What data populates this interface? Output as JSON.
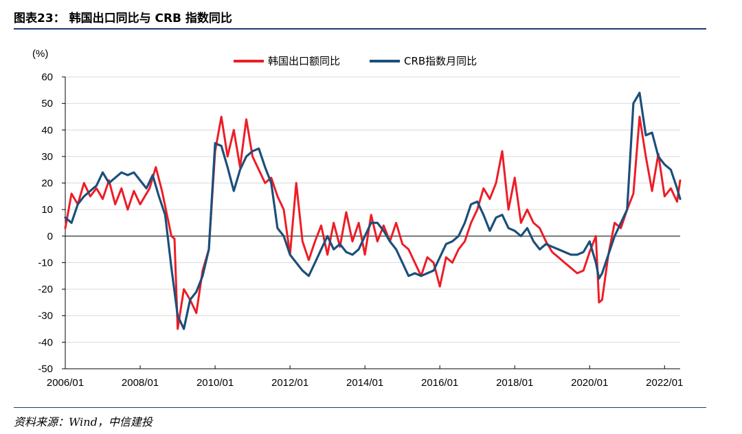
{
  "header": {
    "title": "图表23：  韩国出口同比与 CRB 指数同比"
  },
  "footer": {
    "source": "资料来源：Wind，中信建投"
  },
  "chart_data": {
    "type": "line",
    "unit_label": "(%)",
    "ylim": [
      -50,
      60
    ],
    "yticks": [
      60,
      50,
      40,
      30,
      20,
      10,
      0,
      -10,
      -20,
      -30,
      -40,
      -50
    ],
    "xticks": [
      "2006/01",
      "2008/01",
      "2010/01",
      "2012/01",
      "2014/01",
      "2016/01",
      "2018/01",
      "2020/01",
      "2022/01"
    ],
    "x_start": "2006/01",
    "x_end": "2022/06",
    "grid": true,
    "legend_position": "top-center",
    "series": [
      {
        "name": "韩国出口额同比",
        "color": "#ee1c25",
        "points": [
          [
            "2006/01",
            3
          ],
          [
            "2006/03",
            16
          ],
          [
            "2006/05",
            12
          ],
          [
            "2006/07",
            20
          ],
          [
            "2006/09",
            15
          ],
          [
            "2006/11",
            18
          ],
          [
            "2007/01",
            14
          ],
          [
            "2007/03",
            21
          ],
          [
            "2007/05",
            12
          ],
          [
            "2007/07",
            18
          ],
          [
            "2007/09",
            10
          ],
          [
            "2007/11",
            17
          ],
          [
            "2008/01",
            12
          ],
          [
            "2008/04",
            18
          ],
          [
            "2008/06",
            26
          ],
          [
            "2008/08",
            17
          ],
          [
            "2008/11",
            0
          ],
          [
            "2008/12",
            -1
          ],
          [
            "2009/01",
            -35
          ],
          [
            "2009/03",
            -20
          ],
          [
            "2009/05",
            -24
          ],
          [
            "2009/07",
            -29
          ],
          [
            "2009/09",
            -13
          ],
          [
            "2009/11",
            -5
          ],
          [
            "2010/01",
            32
          ],
          [
            "2010/03",
            45
          ],
          [
            "2010/05",
            30
          ],
          [
            "2010/07",
            40
          ],
          [
            "2010/09",
            26
          ],
          [
            "2010/11",
            44
          ],
          [
            "2011/01",
            30
          ],
          [
            "2011/03",
            25
          ],
          [
            "2011/05",
            20
          ],
          [
            "2011/07",
            22
          ],
          [
            "2011/09",
            15
          ],
          [
            "2011/11",
            10
          ],
          [
            "2012/01",
            -7
          ],
          [
            "2012/03",
            20
          ],
          [
            "2012/05",
            -2
          ],
          [
            "2012/07",
            -9
          ],
          [
            "2012/09",
            -2
          ],
          [
            "2012/11",
            4
          ],
          [
            "2013/01",
            -7
          ],
          [
            "2013/03",
            5
          ],
          [
            "2013/05",
            -4
          ],
          [
            "2013/07",
            9
          ],
          [
            "2013/09",
            -2
          ],
          [
            "2013/11",
            5
          ],
          [
            "2014/01",
            -7
          ],
          [
            "2014/03",
            8
          ],
          [
            "2014/05",
            -2
          ],
          [
            "2014/07",
            4
          ],
          [
            "2014/09",
            -2
          ],
          [
            "2014/11",
            5
          ],
          [
            "2015/01",
            -3
          ],
          [
            "2015/03",
            -5
          ],
          [
            "2015/05",
            -10
          ],
          [
            "2015/07",
            -15
          ],
          [
            "2015/09",
            -8
          ],
          [
            "2015/11",
            -10
          ],
          [
            "2016/01",
            -19
          ],
          [
            "2016/03",
            -8
          ],
          [
            "2016/05",
            -10
          ],
          [
            "2016/07",
            -5
          ],
          [
            "2016/09",
            -2
          ],
          [
            "2016/11",
            5
          ],
          [
            "2017/01",
            10
          ],
          [
            "2017/03",
            18
          ],
          [
            "2017/05",
            14
          ],
          [
            "2017/07",
            20
          ],
          [
            "2017/09",
            32
          ],
          [
            "2017/11",
            10
          ],
          [
            "2018/01",
            22
          ],
          [
            "2018/03",
            5
          ],
          [
            "2018/05",
            10
          ],
          [
            "2018/07",
            5
          ],
          [
            "2018/09",
            3
          ],
          [
            "2018/11",
            -2
          ],
          [
            "2019/01",
            -6
          ],
          [
            "2019/03",
            -8
          ],
          [
            "2019/05",
            -10
          ],
          [
            "2019/07",
            -12
          ],
          [
            "2019/09",
            -14
          ],
          [
            "2019/11",
            -13
          ],
          [
            "2020/01",
            -6
          ],
          [
            "2020/03",
            0
          ],
          [
            "2020/04",
            -25
          ],
          [
            "2020/05",
            -24
          ],
          [
            "2020/07",
            -7
          ],
          [
            "2020/09",
            5
          ],
          [
            "2020/11",
            3
          ],
          [
            "2021/01",
            10
          ],
          [
            "2021/03",
            16
          ],
          [
            "2021/05",
            45
          ],
          [
            "2021/07",
            30
          ],
          [
            "2021/09",
            17
          ],
          [
            "2021/11",
            31
          ],
          [
            "2022/01",
            15
          ],
          [
            "2022/03",
            18
          ],
          [
            "2022/05",
            13
          ],
          [
            "2022/06",
            21
          ]
        ]
      },
      {
        "name": "CRB指数月同比",
        "color": "#1b4f7a",
        "points": [
          [
            "2006/01",
            7
          ],
          [
            "2006/03",
            5
          ],
          [
            "2006/05",
            12
          ],
          [
            "2006/07",
            15
          ],
          [
            "2006/09",
            17
          ],
          [
            "2006/11",
            19
          ],
          [
            "2007/01",
            24
          ],
          [
            "2007/03",
            20
          ],
          [
            "2007/05",
            22
          ],
          [
            "2007/07",
            24
          ],
          [
            "2007/09",
            23
          ],
          [
            "2007/11",
            24
          ],
          [
            "2008/01",
            21
          ],
          [
            "2008/03",
            18
          ],
          [
            "2008/05",
            23
          ],
          [
            "2008/07",
            15
          ],
          [
            "2008/09",
            8
          ],
          [
            "2008/11",
            -12
          ],
          [
            "2009/01",
            -30
          ],
          [
            "2009/03",
            -35
          ],
          [
            "2009/05",
            -24
          ],
          [
            "2009/07",
            -21
          ],
          [
            "2009/09",
            -15
          ],
          [
            "2009/11",
            -5
          ],
          [
            "2010/01",
            35
          ],
          [
            "2010/03",
            34
          ],
          [
            "2010/05",
            26
          ],
          [
            "2010/07",
            17
          ],
          [
            "2010/09",
            25
          ],
          [
            "2010/11",
            30
          ],
          [
            "2011/01",
            32
          ],
          [
            "2011/03",
            33
          ],
          [
            "2011/05",
            26
          ],
          [
            "2011/07",
            20
          ],
          [
            "2011/09",
            3
          ],
          [
            "2011/11",
            0
          ],
          [
            "2012/01",
            -7
          ],
          [
            "2012/03",
            -10
          ],
          [
            "2012/05",
            -13
          ],
          [
            "2012/07",
            -15
          ],
          [
            "2012/09",
            -10
          ],
          [
            "2012/11",
            -5
          ],
          [
            "2013/01",
            0
          ],
          [
            "2013/03",
            -5
          ],
          [
            "2013/05",
            -3
          ],
          [
            "2013/07",
            -6
          ],
          [
            "2013/09",
            -7
          ],
          [
            "2013/11",
            -5
          ],
          [
            "2014/01",
            0
          ],
          [
            "2014/03",
            5
          ],
          [
            "2014/05",
            5
          ],
          [
            "2014/07",
            2
          ],
          [
            "2014/09",
            -2
          ],
          [
            "2014/11",
            -5
          ],
          [
            "2015/01",
            -10
          ],
          [
            "2015/03",
            -15
          ],
          [
            "2015/05",
            -14
          ],
          [
            "2015/07",
            -15
          ],
          [
            "2015/09",
            -14
          ],
          [
            "2015/11",
            -13
          ],
          [
            "2016/01",
            -8
          ],
          [
            "2016/03",
            -3
          ],
          [
            "2016/05",
            -2
          ],
          [
            "2016/07",
            0
          ],
          [
            "2016/09",
            5
          ],
          [
            "2016/11",
            12
          ],
          [
            "2017/01",
            13
          ],
          [
            "2017/03",
            8
          ],
          [
            "2017/05",
            2
          ],
          [
            "2017/07",
            7
          ],
          [
            "2017/09",
            8
          ],
          [
            "2017/11",
            3
          ],
          [
            "2018/01",
            2
          ],
          [
            "2018/03",
            0
          ],
          [
            "2018/05",
            3
          ],
          [
            "2018/07",
            -2
          ],
          [
            "2018/09",
            -5
          ],
          [
            "2018/11",
            -3
          ],
          [
            "2019/01",
            -4
          ],
          [
            "2019/03",
            -5
          ],
          [
            "2019/05",
            -6
          ],
          [
            "2019/07",
            -7
          ],
          [
            "2019/09",
            -7
          ],
          [
            "2019/11",
            -6
          ],
          [
            "2020/01",
            -2
          ],
          [
            "2020/03",
            -10
          ],
          [
            "2020/04",
            -16
          ],
          [
            "2020/05",
            -14
          ],
          [
            "2020/07",
            -7
          ],
          [
            "2020/09",
            0
          ],
          [
            "2020/11",
            5
          ],
          [
            "2021/01",
            10
          ],
          [
            "2021/03",
            50
          ],
          [
            "2021/05",
            54
          ],
          [
            "2021/07",
            38
          ],
          [
            "2021/09",
            39
          ],
          [
            "2021/11",
            30
          ],
          [
            "2022/01",
            27
          ],
          [
            "2022/03",
            25
          ],
          [
            "2022/05",
            18
          ],
          [
            "2022/06",
            14
          ]
        ]
      }
    ]
  }
}
